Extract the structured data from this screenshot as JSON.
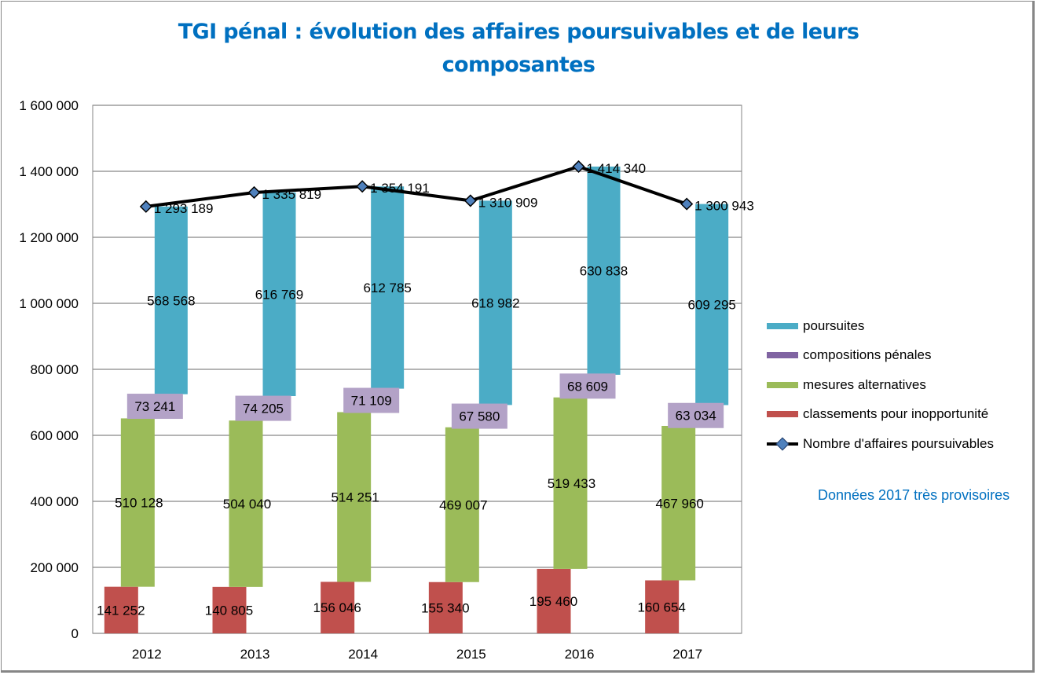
{
  "chart_data": {
    "type": "bar",
    "subtype": "stacked-offset-bar-with-line",
    "title": "TGI pénal : évolution des affaires poursuivables et de leurs composantes",
    "title_lines": [
      "TGI pénal : évolution des affaires poursuivables et de leurs",
      "composantes"
    ],
    "xlabel": "",
    "ylabel": "",
    "ylim": [
      0,
      1600000
    ],
    "yticks": [
      0,
      200000,
      400000,
      600000,
      800000,
      1000000,
      1200000,
      1400000,
      1600000
    ],
    "ytick_labels": [
      "0",
      "200 000",
      "400 000",
      "600 000",
      "800 000",
      "1 000 000",
      "1 200 000",
      "1 400 000",
      "1 600 000"
    ],
    "grid": true,
    "categories": [
      "2012",
      "2013",
      "2014",
      "2015",
      "2016",
      "2017"
    ],
    "series": [
      {
        "name": "classements pour inopportunité",
        "key": "classements",
        "color": "#C0504D",
        "values": [
          141252,
          140805,
          156046,
          155340,
          195460,
          160654
        ],
        "labels": [
          "141 252",
          "140 805",
          "156 046",
          "155 340",
          "195 460",
          "160 654"
        ]
      },
      {
        "name": "mesures alternatives",
        "key": "mesures",
        "color": "#9BBB59",
        "values": [
          510128,
          504040,
          514251,
          469007,
          519433,
          467960
        ],
        "labels": [
          "510 128",
          "504 040",
          "514 251",
          "469 007",
          "519 433",
          "467 960"
        ]
      },
      {
        "name": "compositions pénales",
        "key": "compositions",
        "color": "#8064A2",
        "label_bg": "#B3A2C7",
        "values": [
          73241,
          74205,
          71109,
          67580,
          68609,
          63034
        ],
        "labels": [
          "73 241",
          "74 205",
          "71 109",
          "67 580",
          "68 609",
          "63 034"
        ]
      },
      {
        "name": "poursuites",
        "key": "poursuites",
        "color": "#4BACC6",
        "values": [
          568568,
          616769,
          612785,
          618982,
          630838,
          609295
        ],
        "labels": [
          "568 568",
          "616 769",
          "612 785",
          "618 982",
          "630 838",
          "609 295"
        ]
      }
    ],
    "line_series": {
      "name": "Nombre d'affaires poursuivables",
      "color": "#000000",
      "marker_color": "#4F81BD",
      "values": [
        1293189,
        1335819,
        1354191,
        1310909,
        1414340,
        1300943
      ],
      "labels": [
        "1 293 189",
        "1 335 819",
        "1 354 191",
        "1 310 909",
        "1 414 340",
        "1 300 943"
      ]
    },
    "legend_position": "right",
    "legend": [
      "poursuites",
      "compositions pénales",
      "mesures alternatives",
      "classements pour inopportunité",
      "Nombre d'affaires poursuivables"
    ],
    "annotation": "Données 2017 très provisoires"
  },
  "legend_items": [
    {
      "label": "poursuites",
      "color": "#4BACC6"
    },
    {
      "label": "compositions pénales",
      "color": "#8064A2"
    },
    {
      "label": "mesures alternatives",
      "color": "#9BBB59"
    },
    {
      "label": "classements pour inopportunité",
      "color": "#C0504D"
    }
  ],
  "legend_line_label": "Nombre d'affaires poursuivables",
  "footnote": "Données 2017 très provisoires"
}
